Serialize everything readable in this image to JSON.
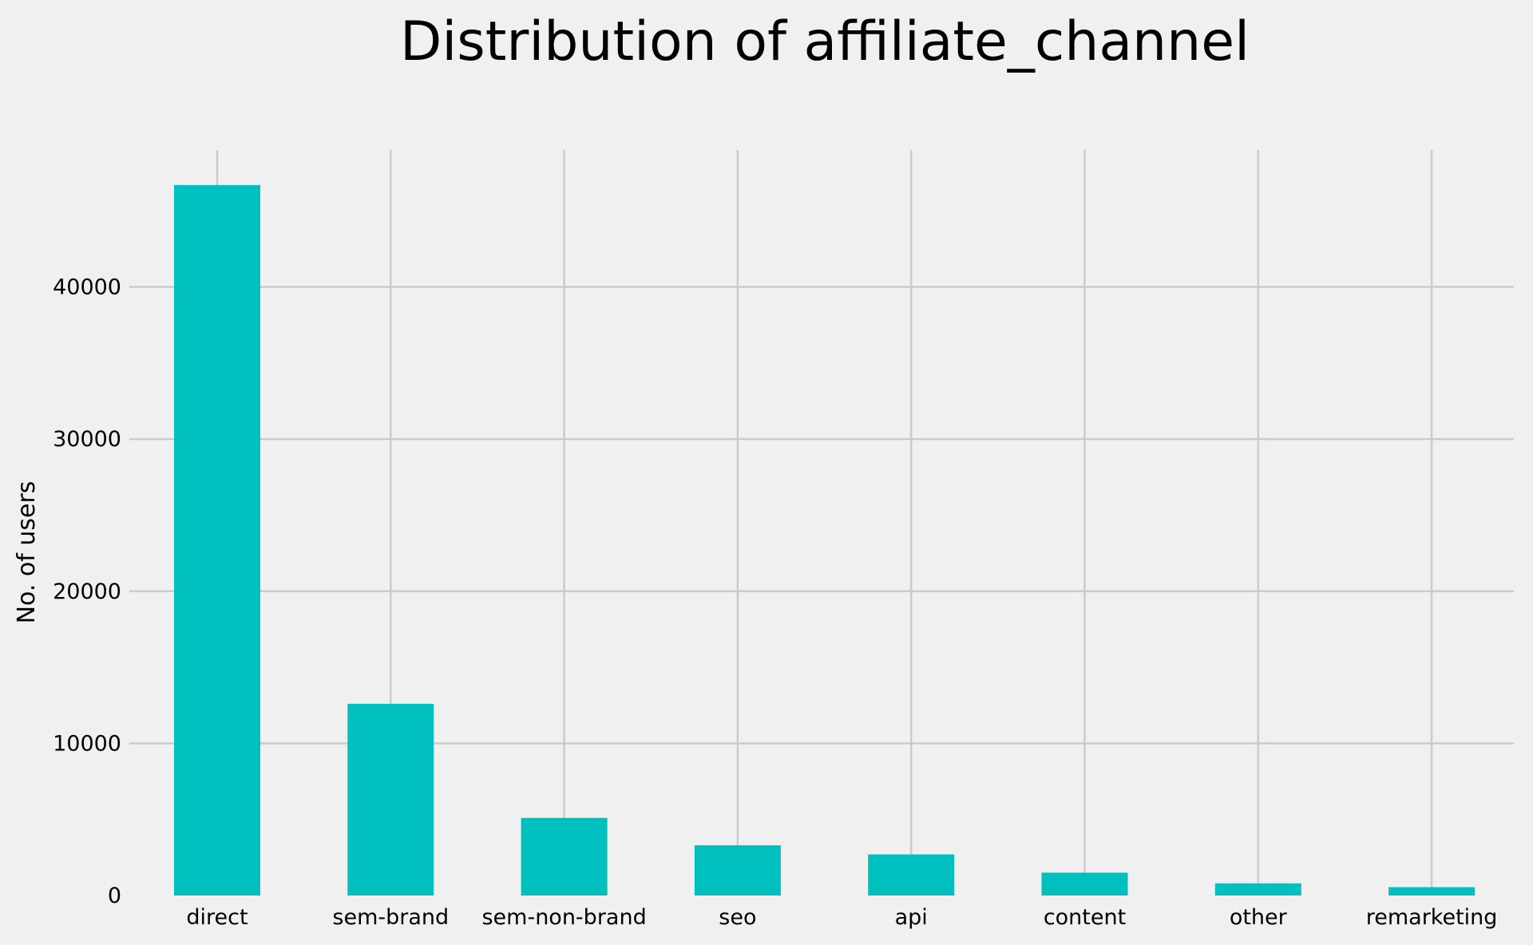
{
  "chart_data": {
    "type": "bar",
    "title": "Distribution of affiliate_channel",
    "xlabel": "",
    "ylabel": "No. of users",
    "categories": [
      "direct",
      "sem-brand",
      "sem-non-brand",
      "seo",
      "api",
      "content",
      "other",
      "remarketing"
    ],
    "values": [
      46700,
      12600,
      5100,
      3300,
      2700,
      1500,
      800,
      550
    ],
    "ylim": [
      0,
      49000
    ],
    "yticks": [
      0,
      10000,
      20000,
      30000,
      40000
    ],
    "grid": true,
    "bar_color": "#00bfbf",
    "background_color": "#f0f0f0",
    "grid_color": "#cbcbcb"
  }
}
